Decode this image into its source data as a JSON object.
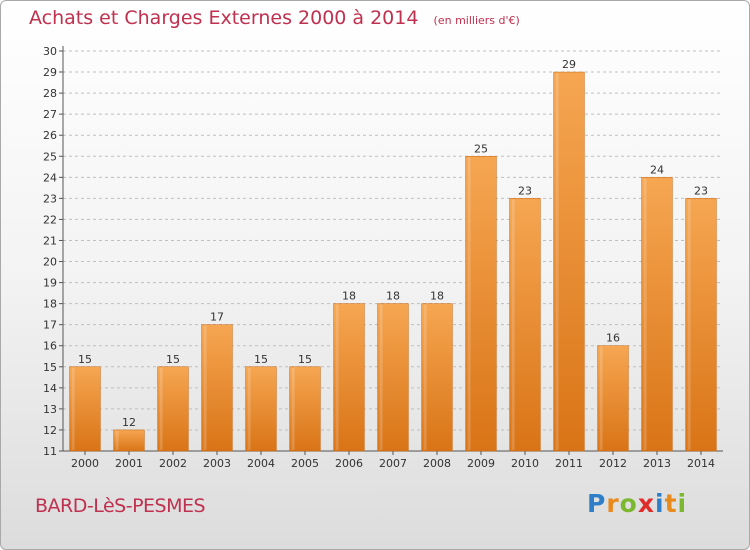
{
  "chart_data": {
    "type": "bar",
    "title": "Achats et Charges Externes 2000 à 2014",
    "unit_note": "(en milliers d'€)",
    "categories": [
      "2000",
      "2001",
      "2002",
      "2003",
      "2004",
      "2005",
      "2006",
      "2007",
      "2008",
      "2009",
      "2010",
      "2011",
      "2012",
      "2013",
      "2014"
    ],
    "values": [
      15,
      12,
      15,
      17,
      15,
      15,
      18,
      18,
      18,
      25,
      23,
      29,
      16,
      24,
      23
    ],
    "ylim": [
      11,
      30
    ],
    "yticks": [
      11,
      12,
      13,
      14,
      15,
      16,
      17,
      18,
      19,
      20,
      21,
      22,
      23,
      24,
      25,
      26,
      27,
      28,
      29,
      30
    ],
    "grid": true,
    "bar_color_top": "#f6a652",
    "bar_color_bottom": "#d97416"
  },
  "footer": {
    "commune": "BARD-LèS-PESMES",
    "brand_letters": [
      {
        "ch": "P",
        "color": "#2f7fc8"
      },
      {
        "ch": "r",
        "color": "#e98a1c"
      },
      {
        "ch": "o",
        "color": "#7cb82f"
      },
      {
        "ch": "x",
        "color": "#e02b2b"
      },
      {
        "ch": "i",
        "color": "#2f7fc8"
      },
      {
        "ch": "t",
        "color": "#e98a1c"
      },
      {
        "ch": "i",
        "color": "#7cb82f"
      }
    ]
  }
}
